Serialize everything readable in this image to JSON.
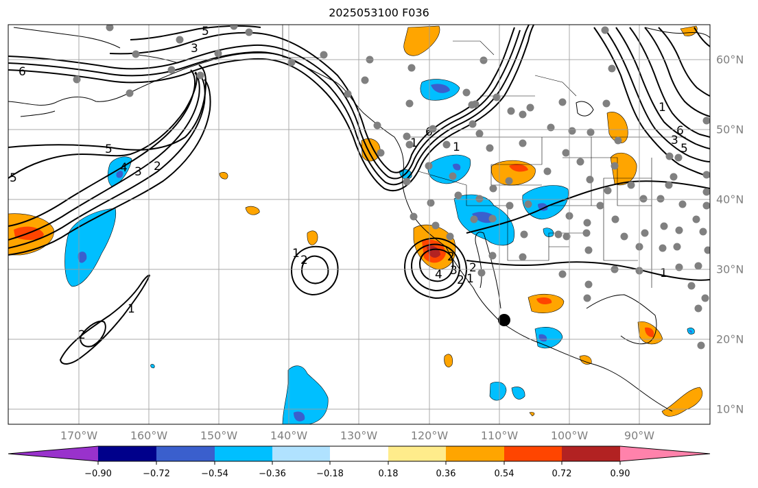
{
  "title": "2025053100 F036",
  "lon_labels": [
    "170°W",
    "160°W",
    "150°W",
    "140°W",
    "130°W",
    "120°W",
    "110°W",
    "100°W",
    "90°W"
  ],
  "lat_labels": [
    "60°N",
    "50°N",
    "40°N",
    "30°N",
    "20°N",
    "10°N"
  ],
  "colorbar": {
    "ticks": [
      "−0.90",
      "−0.72",
      "−0.54",
      "−0.36",
      "−0.18",
      "0.18",
      "0.36",
      "0.54",
      "0.72",
      "0.90"
    ],
    "colors": [
      "#9932cc",
      "#00008b",
      "#3a5fcd",
      "#00bfff",
      "#b0e2ff",
      "#ffffff",
      "#ffec8b",
      "#ffa500",
      "#ff4500",
      "#b22222",
      "#ff82ab"
    ]
  },
  "contour_labels": [
    "5",
    "3",
    "6",
    "5",
    "4",
    "3",
    "2",
    "5",
    "6",
    "1",
    "2",
    "1",
    "2",
    "4",
    "3",
    "2",
    "1",
    "2",
    "1",
    "2",
    "1",
    "1",
    "1",
    "6",
    "3",
    "5"
  ]
}
